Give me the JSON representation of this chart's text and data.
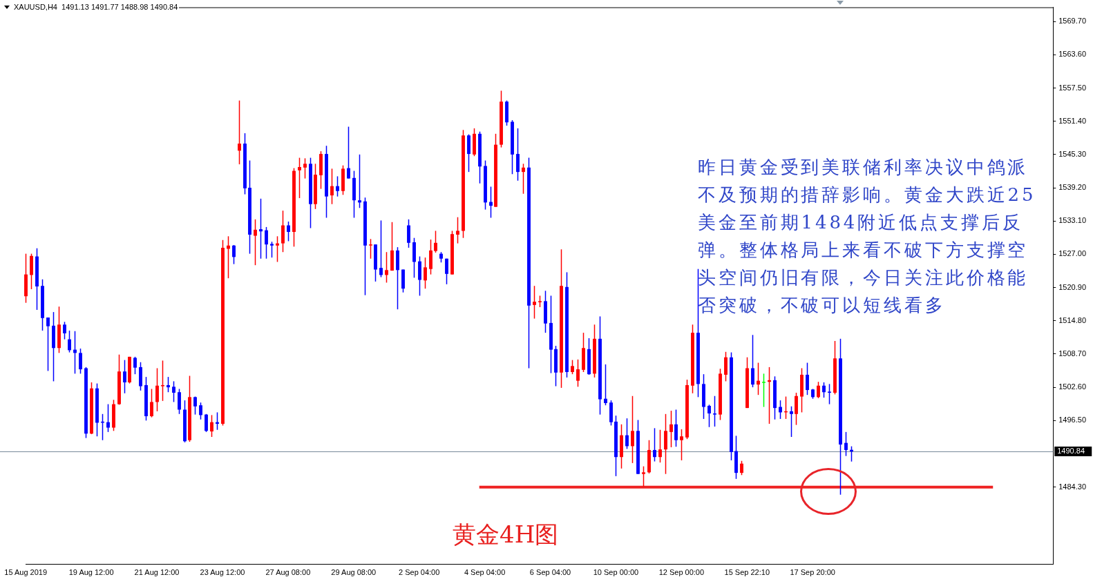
{
  "chart_data": {
    "type": "candlestick",
    "title": "XAUUSD,H4  1491.13 1491.77 1488.98 1490.84",
    "annotations": [
      "昨日黄金受到美联储利率决议中鸽派不及预期的措辞影响。黄金大跌近25美金至前期1484附近低点支撑后反弹。整体格局上来看不破下方支撑空头空间仍旧有限，今日关注此价格能否突破，不破可以短线看多",
      "黄金4H图"
    ],
    "categories": [
      "15 Aug 2019",
      null,
      null,
      null,
      null,
      null,
      null,
      null,
      null,
      null,
      null,
      null,
      "19 Aug 12:00",
      null,
      null,
      null,
      null,
      null,
      null,
      null,
      null,
      null,
      null,
      null,
      "21 Aug 12:00",
      null,
      null,
      null,
      null,
      null,
      null,
      null,
      null,
      null,
      null,
      null,
      "23 Aug 12:00",
      null,
      null,
      null,
      null,
      null,
      null,
      null,
      null,
      null,
      null,
      null,
      "27 Aug 08:00",
      null,
      null,
      null,
      null,
      null,
      null,
      null,
      null,
      null,
      null,
      null,
      "29 Aug 08:00",
      null,
      null,
      null,
      null,
      null,
      null,
      null,
      null,
      null,
      null,
      null,
      "2 Sep 04:00",
      null,
      null,
      null,
      null,
      null,
      null,
      null,
      null,
      null,
      null,
      null,
      "4 Sep 04:00",
      null,
      null,
      null,
      null,
      null,
      null,
      null,
      null,
      null,
      null,
      null,
      "6 Sep 04:00",
      null,
      null,
      null,
      null,
      null,
      null,
      null,
      null,
      null,
      null,
      null,
      "10 Sep 00:00",
      null,
      null,
      null,
      null,
      null,
      null,
      null,
      null,
      null,
      null,
      null,
      "12 Sep 00:00",
      null,
      null,
      null,
      null,
      null,
      null,
      null,
      null,
      null,
      null,
      null,
      "15 Sep 22:10",
      null,
      null,
      null,
      null,
      null,
      null,
      null,
      null,
      null,
      null,
      null,
      "17 Sep 20:00",
      null,
      null,
      null,
      null,
      null,
      null,
      null,
      null,
      null,
      null,
      null,
      null,
      null,
      null,
      null,
      null,
      null,
      null,
      null,
      null,
      null,
      null,
      null,
      null,
      null,
      null,
      null,
      null,
      null,
      null,
      null,
      null,
      null,
      null,
      null,
      null,
      null,
      null,
      null,
      null,
      null,
      null,
      null,
      null
    ],
    "ohlc": [
      [
        1519.3,
        1527.1,
        1518.1,
        1523.3
      ],
      [
        1523.2,
        1527.1,
        1520.6,
        1526.7
      ],
      [
        1526.6,
        1528.1,
        1516.8,
        1521.1
      ],
      [
        1521.2,
        1522.4,
        1513.0,
        1515.3
      ],
      [
        1515.4,
        1515.4,
        1505.6,
        1513.8
      ],
      [
        1513.9,
        1516.4,
        1503.7,
        1509.8
      ],
      [
        1509.8,
        1517.4,
        1508.9,
        1514.1
      ],
      [
        1514.1,
        1514.6,
        1511.4,
        1512.5
      ],
      [
        1511.4,
        1513.0,
        1509.0,
        1509.4
      ],
      [
        1509.5,
        1512.9,
        1505.1,
        1508.9
      ],
      [
        1508.9,
        1509.7,
        1505.1,
        1505.9
      ],
      [
        1506.1,
        1506.3,
        1493.3,
        1494.1
      ],
      [
        1494.1,
        1503.5,
        1494.0,
        1502.4
      ],
      [
        1502.4,
        1503.3,
        1493.6,
        1496.1
      ],
      [
        1496.3,
        1497.7,
        1492.9,
        1496.1
      ],
      [
        1496.2,
        1499.5,
        1494.4,
        1495.2
      ],
      [
        1495.2,
        1500.3,
        1494.6,
        1499.5
      ],
      [
        1499.5,
        1508.6,
        1499.4,
        1505.5
      ],
      [
        1505.5,
        1507.6,
        1501.5,
        1503.5
      ],
      [
        1503.5,
        1508.2,
        1503.3,
        1508.2
      ],
      [
        1508.0,
        1508.2,
        1505.0,
        1506.2
      ],
      [
        1506.3,
        1507.2,
        1502.0,
        1502.8
      ],
      [
        1503.0,
        1504.5,
        1496.5,
        1497.3
      ],
      [
        1497.3,
        1502.3,
        1497.1,
        1499.9
      ],
      [
        1499.9,
        1506.1,
        1498.2,
        1502.9
      ],
      [
        1502.8,
        1507.5,
        1500.1,
        1503.0
      ],
      [
        1503.0,
        1504.5,
        1501.7,
        1502.6
      ],
      [
        1502.7,
        1503.7,
        1499.9,
        1501.6
      ],
      [
        1501.7,
        1502.3,
        1497.7,
        1498.5
      ],
      [
        1498.5,
        1500.2,
        1492.5,
        1492.7
      ],
      [
        1492.9,
        1504.7,
        1492.6,
        1500.8
      ],
      [
        1500.8,
        1500.9,
        1497.6,
        1499.1
      ],
      [
        1499.3,
        1499.8,
        1496.7,
        1497.5
      ],
      [
        1497.6,
        1497.7,
        1494.4,
        1494.6
      ],
      [
        1494.5,
        1497.5,
        1493.5,
        1496.2
      ],
      [
        1496.2,
        1498.0,
        1494.8,
        1495.9
      ],
      [
        1495.9,
        1529.6,
        1495.6,
        1528.2
      ],
      [
        1528.0,
        1530.3,
        1522.6,
        1528.6
      ],
      [
        1528.6,
        1528.7,
        1525.2,
        1526.5
      ],
      [
        1546.0,
        1555.2,
        1543.5,
        1547.3
      ],
      [
        1547.3,
        1549.2,
        1538.0,
        1539.1
      ],
      [
        1539.2,
        1544.2,
        1527.1,
        1530.6
      ],
      [
        1530.4,
        1533.4,
        1525.0,
        1531.5
      ],
      [
        1531.6,
        1537.2,
        1526.2,
        1531.2
      ],
      [
        1531.4,
        1532.0,
        1526.2,
        1528.8
      ],
      [
        1528.9,
        1529.3,
        1526.4,
        1528.6
      ],
      [
        1528.6,
        1530.3,
        1525.6,
        1529.0
      ],
      [
        1529.0,
        1535.0,
        1527.4,
        1532.3
      ],
      [
        1532.3,
        1533.0,
        1529.4,
        1531.1
      ],
      [
        1531.1,
        1542.8,
        1528.4,
        1542.3
      ],
      [
        1542.4,
        1544.7,
        1537.3,
        1543.0
      ],
      [
        1542.9,
        1544.6,
        1540.9,
        1543.6
      ],
      [
        1543.6,
        1544.7,
        1531.8,
        1536.2
      ],
      [
        1536.2,
        1543.6,
        1535.3,
        1541.6
      ],
      [
        1541.5,
        1545.9,
        1539.0,
        1545.4
      ],
      [
        1545.4,
        1546.9,
        1533.7,
        1537.6
      ],
      [
        1537.8,
        1542.7,
        1536.2,
        1539.5
      ],
      [
        1539.5,
        1541.3,
        1537.6,
        1538.6
      ],
      [
        1538.6,
        1543.3,
        1537.9,
        1542.7
      ],
      [
        1542.8,
        1550.4,
        1540.9,
        1540.9
      ],
      [
        1541.0,
        1542.3,
        1533.7,
        1536.9
      ],
      [
        1536.9,
        1545.3,
        1535.5,
        1536.5
      ],
      [
        1536.7,
        1537.4,
        1519.5,
        1528.6
      ],
      [
        1528.7,
        1529.8,
        1526.2,
        1528.8
      ],
      [
        1528.8,
        1528.8,
        1522.0,
        1524.2
      ],
      [
        1524.5,
        1533.2,
        1522.8,
        1523.2
      ],
      [
        1523.2,
        1527.4,
        1521.8,
        1524.1
      ],
      [
        1524.0,
        1532.9,
        1524.0,
        1527.7
      ],
      [
        1527.7,
        1528.3,
        1516.9,
        1524.1
      ],
      [
        1524.2,
        1524.2,
        1520.0,
        1520.7
      ],
      [
        1532.3,
        1533.4,
        1528.2,
        1529.1
      ],
      [
        1529.2,
        1530.0,
        1522.7,
        1525.6
      ],
      [
        1525.7,
        1526.6,
        1519.4,
        1522.3
      ],
      [
        1522.2,
        1526.4,
        1520.7,
        1524.6
      ],
      [
        1524.3,
        1529.7,
        1523.3,
        1527.7
      ],
      [
        1527.6,
        1531.3,
        1527.3,
        1529.1
      ],
      [
        1527.1,
        1527.4,
        1525.5,
        1526.2
      ],
      [
        1526.2,
        1526.2,
        1521.5,
        1523.4
      ],
      [
        1523.3,
        1531.3,
        1523.3,
        1530.7
      ],
      [
        1530.6,
        1533.8,
        1529.0,
        1531.3
      ],
      [
        1531.3,
        1549.8,
        1530.0,
        1548.8
      ],
      [
        1548.8,
        1549.0,
        1542.1,
        1545.4
      ],
      [
        1545.3,
        1550.1,
        1545.0,
        1549.1
      ],
      [
        1549.1,
        1549.5,
        1540.0,
        1543.1
      ],
      [
        1543.2,
        1544.2,
        1535.2,
        1536.5
      ],
      [
        1536.6,
        1539.4,
        1533.7,
        1535.9
      ],
      [
        1535.7,
        1549.1,
        1535.7,
        1547.1
      ],
      [
        1547.1,
        1557.0,
        1546.6,
        1555.0
      ],
      [
        1555.0,
        1555.2,
        1550.6,
        1551.2
      ],
      [
        1551.3,
        1551.6,
        1541.7,
        1545.3
      ],
      [
        1545.4,
        1550.1,
        1540.5,
        1542.1
      ],
      [
        1542.1,
        1543.6,
        1538.1,
        1542.9
      ],
      [
        1542.9,
        1544.7,
        1506.1,
        1517.6
      ],
      [
        1517.7,
        1521.2,
        1515.2,
        1518.3
      ],
      [
        1518.2,
        1519.4,
        1517.3,
        1518.4
      ],
      [
        1518.4,
        1520.3,
        1512.6,
        1514.3
      ],
      [
        1514.4,
        1519.4,
        1505.2,
        1509.5
      ],
      [
        1509.6,
        1510.2,
        1502.8,
        1505.3
      ],
      [
        1505.3,
        1527.9,
        1502.5,
        1521.2
      ],
      [
        1521.0,
        1523.7,
        1504.4,
        1505.4
      ],
      [
        1505.4,
        1507.6,
        1505.0,
        1506.5
      ],
      [
        1503.8,
        1507.7,
        1502.7,
        1505.9
      ],
      [
        1505.8,
        1512.6,
        1505.4,
        1509.8
      ],
      [
        1509.6,
        1511.6,
        1504.9,
        1505.0
      ],
      [
        1505.1,
        1514.1,
        1504.4,
        1511.5
      ],
      [
        1511.5,
        1515.6,
        1497.6,
        1500.4
      ],
      [
        1500.5,
        1506.8,
        1499.3,
        1499.7
      ],
      [
        1499.8,
        1500.2,
        1495.6,
        1496.2
      ],
      [
        1496.3,
        1497.4,
        1486.3,
        1489.8
      ],
      [
        1489.8,
        1495.8,
        1487.7,
        1493.8
      ],
      [
        1493.8,
        1496.9,
        1491.3,
        1491.8
      ],
      [
        1491.8,
        1501.0,
        1488.7,
        1494.6
      ],
      [
        1494.6,
        1496.6,
        1486.7,
        1486.7
      ],
      [
        1486.7,
        1488.1,
        1484.4,
        1487.0
      ],
      [
        1487.0,
        1492.9,
        1486.8,
        1491.1
      ],
      [
        1491.1,
        1495.1,
        1489.0,
        1489.8
      ],
      [
        1489.8,
        1494.8,
        1488.8,
        1491.2
      ],
      [
        1491.2,
        1497.7,
        1486.7,
        1494.6
      ],
      [
        1494.4,
        1498.3,
        1491.6,
        1495.8
      ],
      [
        1495.8,
        1498.5,
        1491.7,
        1492.9
      ],
      [
        1492.9,
        1494.9,
        1489.2,
        1493.6
      ],
      [
        1493.4,
        1504.0,
        1493.1,
        1503.0
      ],
      [
        1502.9,
        1514.1,
        1501.5,
        1512.6
      ],
      [
        1512.6,
        1524.3,
        1500.8,
        1503.2
      ],
      [
        1503.2,
        1505.0,
        1496.8,
        1499.0
      ],
      [
        1499.2,
        1499.4,
        1495.3,
        1497.8
      ],
      [
        1497.8,
        1501.0,
        1495.4,
        1497.6
      ],
      [
        1497.6,
        1506.0,
        1496.6,
        1505.1
      ],
      [
        1504.9,
        1509.1,
        1503.7,
        1508.1
      ],
      [
        1508.1,
        1509.0,
        1489.2,
        1490.7
      ],
      [
        1490.9,
        1493.7,
        1485.8,
        1486.9
      ],
      [
        1486.9,
        1489.1,
        1486.5,
        1488.6
      ],
      [
        1498.8,
        1508.1,
        1498.8,
        1506.1
      ],
      [
        1506.1,
        1512.2,
        1502.6,
        1503.1
      ],
      [
        1503.1,
        1507.1,
        1501.2,
        1503.8
      ],
      [
        1503.6,
        1505.1,
        1499.0,
        1503.6
      ],
      [
        1503.6,
        1506.3,
        1495.9,
        1503.9
      ],
      [
        1503.9,
        1504.6,
        1496.7,
        1498.8
      ],
      [
        1499.0,
        1500.2,
        1496.8,
        1498.0
      ],
      [
        1498.1,
        1500.9,
        1496.8,
        1498.2
      ],
      [
        1498.2,
        1499.1,
        1493.5,
        1497.7
      ],
      [
        1497.7,
        1501.6,
        1495.7,
        1501.0
      ],
      [
        1500.9,
        1506.1,
        1498.0,
        1504.9
      ],
      [
        1504.9,
        1507.1,
        1501.2,
        1502.1
      ],
      [
        1502.2,
        1502.3,
        1500.5,
        1500.8
      ],
      [
        1500.8,
        1503.6,
        1500.6,
        1502.9
      ],
      [
        1502.9,
        1503.5,
        1500.7,
        1501.7
      ],
      [
        1501.8,
        1503.2,
        1499.5,
        1501.6
      ],
      [
        1501.6,
        1511.1,
        1501.3,
        1507.9
      ],
      [
        1507.9,
        1511.5,
        1482.9,
        1492.1
      ],
      [
        1492.4,
        1494.4,
        1490.0,
        1491.1
      ],
      [
        1491.13,
        1491.77,
        1488.98,
        1490.84
      ],
      null,
      null,
      null,
      null,
      null,
      null,
      null,
      null,
      null,
      null,
      null,
      null,
      null,
      null,
      null,
      null,
      null,
      null,
      null,
      null,
      null,
      null,
      null,
      null,
      null,
      null,
      null,
      null,
      null,
      null,
      null,
      null,
      null,
      null,
      null,
      null,
      null
    ],
    "colors": [
      "#ff0000",
      "#ff0000",
      "#0000ff",
      "#0000ff",
      "#0000ff",
      "#0000ff",
      "#ff0000",
      "#0000ff",
      "#0000ff",
      "#0000ff",
      "#0000ff",
      "#0000ff",
      "#ff0000",
      "#0000ff",
      "#0000ff",
      "#0000ff",
      "#ff0000",
      "#ff0000",
      "#0000ff",
      "#ff0000",
      "#0000ff",
      "#0000ff",
      "#0000ff",
      "#ff0000",
      "#ff0000",
      "#ff0000",
      "#0000ff",
      "#0000ff",
      "#0000ff",
      "#0000ff",
      "#ff0000",
      "#0000ff",
      "#0000ff",
      "#0000ff",
      "#ff0000",
      "#0000ff",
      "#ff0000",
      "#ff0000",
      "#0000ff",
      "#ff0000",
      "#0000ff",
      "#0000ff",
      "#ff0000",
      "#0000ff",
      "#0000ff",
      "#0000ff",
      "#ff0000",
      "#ff0000",
      "#0000ff",
      "#ff0000",
      "#ff0000",
      "#ff0000",
      "#0000ff",
      "#ff0000",
      "#ff0000",
      "#0000ff",
      "#ff0000",
      "#0000ff",
      "#ff0000",
      "#0000ff",
      "#0000ff",
      "#0000ff",
      "#0000ff",
      "#ff0000",
      "#0000ff",
      "#0000ff",
      "#ff0000",
      "#ff0000",
      "#0000ff",
      "#0000ff",
      "#0000ff",
      "#0000ff",
      "#0000ff",
      "#ff0000",
      "#ff0000",
      "#ff0000",
      "#0000ff",
      "#0000ff",
      "#ff0000",
      "#ff0000",
      "#ff0000",
      "#0000ff",
      "#ff0000",
      "#0000ff",
      "#0000ff",
      "#0000ff",
      "#ff0000",
      "#ff0000",
      "#0000ff",
      "#0000ff",
      "#0000ff",
      "#ff0000",
      "#0000ff",
      "#ff0000",
      "#ff0000",
      "#0000ff",
      "#0000ff",
      "#0000ff",
      "#ff0000",
      "#0000ff",
      "#ff0000",
      "#ff0000",
      "#ff0000",
      "#0000ff",
      "#ff0000",
      "#0000ff",
      "#0000ff",
      "#0000ff",
      "#0000ff",
      "#ff0000",
      "#0000ff",
      "#ff0000",
      "#0000ff",
      "#ff0000",
      "#ff0000",
      "#0000ff",
      "#ff0000",
      "#ff0000",
      "#ff0000",
      "#0000ff",
      "#ff0000",
      "#ff0000",
      "#ff0000",
      "#0000ff",
      "#0000ff",
      "#0000ff",
      "#0000ff",
      "#ff0000",
      "#ff0000",
      "#0000ff",
      "#0000ff",
      "#ff0000",
      "#ff0000",
      "#0000ff",
      "#ff0000",
      "#00ff00",
      "#ff0000",
      "#0000ff",
      "#0000ff",
      "#ff0000",
      "#0000ff",
      "#ff0000",
      "#ff0000",
      "#0000ff",
      "#0000ff",
      "#ff0000",
      "#0000ff",
      "#0000ff",
      "#ff0000",
      "#0000ff",
      "#0000ff",
      "#0000ff",
      null,
      null,
      null,
      null,
      null,
      null,
      null,
      null,
      null,
      null,
      null,
      null,
      null,
      null,
      null,
      null,
      null,
      null,
      null,
      null,
      null,
      null,
      null,
      null,
      null,
      null,
      null,
      null,
      null,
      null,
      null,
      null,
      null,
      null,
      null,
      null,
      null
    ],
    "series": [
      {
        "type": "line",
        "color": "#ee2222",
        "values": [
          null,
          null,
          null,
          null,
          null,
          null,
          null,
          null,
          null,
          null,
          null,
          null,
          null,
          null,
          null,
          null,
          null,
          null,
          null,
          null,
          null,
          null,
          null,
          null,
          null,
          null,
          null,
          null,
          null,
          null,
          null,
          null,
          null,
          null,
          null,
          null,
          null,
          null,
          null,
          null,
          null,
          null,
          null,
          null,
          null,
          null,
          null,
          null,
          null,
          null,
          null,
          null,
          null,
          null,
          null,
          null,
          null,
          null,
          null,
          null,
          null,
          null,
          null,
          null,
          null,
          null,
          null,
          null,
          null,
          null,
          null,
          null,
          null,
          null,
          null,
          null,
          null,
          null,
          null,
          null,
          null,
          null,
          null,
          1484.3,
          1484.3,
          1484.3,
          1484.3,
          1484.3,
          1484.3,
          1484.3,
          1484.3,
          1484.3,
          1484.3,
          1484.3,
          1484.3,
          1484.3,
          1484.3,
          1484.3,
          1484.3,
          1484.3,
          1484.3,
          1484.3,
          1484.3,
          1484.3,
          1484.3,
          1484.3,
          1484.3,
          1484.3,
          1484.3,
          1484.3,
          1484.3,
          1484.3,
          1484.3,
          1484.3,
          1484.3,
          1484.3,
          1484.3,
          1484.3,
          1484.3,
          1484.3,
          1484.3,
          1484.3,
          1484.3,
          1484.3,
          1484.3,
          1484.3,
          1484.3,
          1484.3,
          1484.3,
          1484.3,
          1484.3,
          1484.3,
          1484.3,
          1484.3,
          1484.3,
          1484.3,
          1484.3,
          1484.3,
          1484.3,
          1484.3,
          1484.3,
          1484.3,
          1484.3,
          1484.3,
          1484.3,
          1484.3,
          1484.3,
          1484.3,
          1484.3,
          1484.3,
          1484.3,
          1484.3,
          1484.3,
          1484.3,
          1484.3,
          1484.3,
          1484.3,
          1484.3,
          1484.3,
          1484.3,
          1484.3,
          1484.3,
          1484.3,
          1484.3,
          1484.3,
          1484.3,
          1484.3,
          1484.3,
          1484.3,
          1484.3,
          1484.3,
          1484.3,
          1484.3,
          1484.3,
          1484.3,
          1484.3,
          1484.3,
          1484.3,
          null,
          null,
          null,
          null,
          null,
          null,
          null,
          null,
          null,
          null,
          null
        ]
      }
    ],
    "ylim": [
      1470.1,
      1572.3
    ],
    "yticks": [
      {
        "value": 1484.3,
        "label": "1484.30"
      },
      {
        "value": 1496.5,
        "label": "1496.50"
      },
      {
        "value": 1502.6,
        "label": "1502.60"
      },
      {
        "value": 1508.7,
        "label": "1508.70"
      },
      {
        "value": 1514.8,
        "label": "1514.80"
      },
      {
        "value": 1520.9,
        "label": "1520.90"
      },
      {
        "value": 1527.0,
        "label": "1527.00"
      },
      {
        "value": 1533.1,
        "label": "1533.10"
      },
      {
        "value": 1539.2,
        "label": "1539.20"
      },
      {
        "value": 1545.3,
        "label": "1545.30"
      },
      {
        "value": 1551.4,
        "label": "1551.40"
      },
      {
        "value": 1557.5,
        "label": "1557.50"
      },
      {
        "value": 1563.6,
        "label": "1563.60"
      },
      {
        "value": 1569.7,
        "label": "1569.70"
      }
    ],
    "ref_lines": [
      {
        "axis": "y",
        "value": 1490.84,
        "label": "1490.84",
        "color": "#778899"
      }
    ],
    "grid": false,
    "legend": false
  }
}
